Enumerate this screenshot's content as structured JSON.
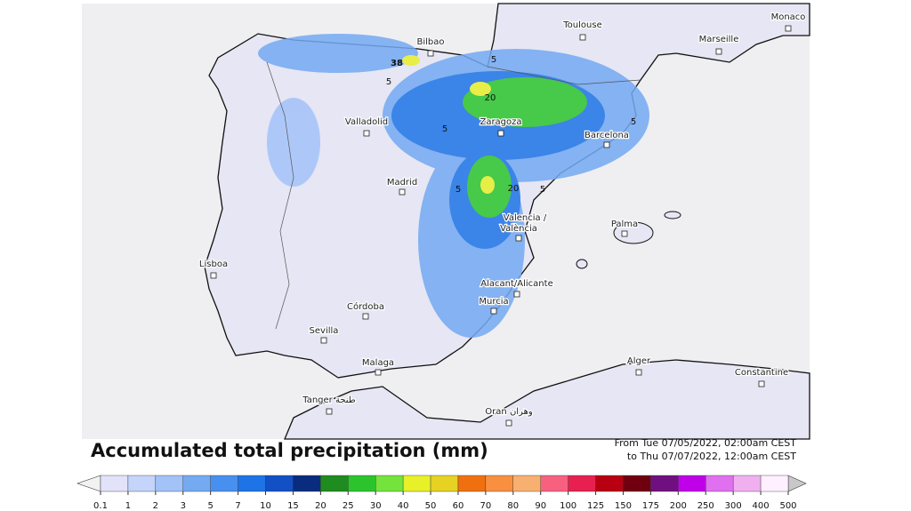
{
  "map": {
    "title": "Accumulated total precipitation (mm)",
    "date_range": [
      "From Tue 07/05/2022, 02:00am CEST",
      "to Thu 07/07/2022, 12:00am CEST"
    ],
    "cities": [
      "Toulouse",
      "Monaco",
      "Marseille",
      "Bilbao",
      "Valladolid",
      "Zaragoza",
      "Barcelona",
      "Madrid",
      "Valencia /",
      "València",
      "Palma",
      "Lisboa",
      "Alacant/Alicante",
      "Murcia",
      "Córdoba",
      "Sevilla",
      "Malaga",
      "Alger",
      "Constantine",
      "Tanger طنجة",
      "Oran وهران"
    ],
    "contour_labels": [
      38,
      5,
      5,
      20,
      5,
      5,
      5,
      20,
      5
    ]
  },
  "legend": {
    "ticks": [
      0.1,
      1,
      2,
      3,
      5,
      7,
      10,
      15,
      20,
      25,
      30,
      40,
      50,
      60,
      70,
      80,
      90,
      100,
      125,
      150,
      175,
      200,
      250,
      300,
      400,
      500
    ],
    "colors": [
      "#e2e2f8",
      "#c4d4fa",
      "#a2c2f8",
      "#74aaf2",
      "#4890f0",
      "#1e74e6",
      "#1250c6",
      "#0a2c7e",
      "#1e8c1e",
      "#2cc42c",
      "#74e43c",
      "#e8f02a",
      "#e6d222",
      "#f07010",
      "#f89040",
      "#f8b070",
      "#f86080",
      "#e82050",
      "#b80010",
      "#700010",
      "#701080",
      "#c000e8",
      "#e070f0",
      "#f0b0f0",
      "#fff0ff"
    ],
    "under_color": "#f2f2f2",
    "over_color": "#c8c8c8"
  }
}
